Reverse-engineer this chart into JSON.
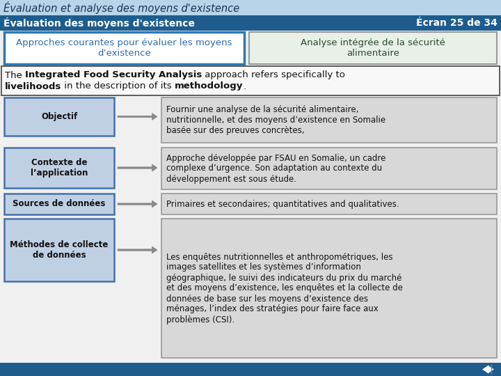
{
  "title1": "Évaluation et analyse des moyens d'existence",
  "title2": "Évaluation des moyens d'existence",
  "screen_label": "Écran 25 de 34",
  "tab1": "Approches courantes pour évaluer les moyens\nd’existence",
  "tab2": "Analyse intégrée de la sécurité\nalimentaire",
  "rows": [
    {
      "label": "Objectif",
      "text": "Fournir une analyse de la sécurité alimentaire,\nnutritionnelle, et des moyens d’existence en Somalie\nbasée sur des preuves concrètes,"
    },
    {
      "label": "Contexte de\nl’application",
      "text": "Approche développée par FSAU en Somalie, un cadre\ncomplexe d’urgence. Son adaptation au contexte du\ndéveloppement est sous étude."
    },
    {
      "label": "Sources de données",
      "text": "Primaires et secondaires; quantitatives and qualitatives."
    },
    {
      "label": "Méthodes de collecte\nde données",
      "text": "Les enquêtes nutritionnelles et anthropométriques, les\nimages satellites et les systèmes d’information\ngéographique, le suivi des indicateurs du prix du marché\net des moyens d’existence, les enquêtes et la collecte de\ndonnées de base sur les moyens d’existence des\nménages, l’index des stratégies pour faire face aux\nproblèmes (CSI)."
    }
  ],
  "color_header1_bg": "#b8d4e8",
  "color_header2_bg": "#1e5c8e",
  "color_header2_text": "#ffffff",
  "color_tab1_bg": "#ffffff",
  "color_tab1_border": "#2b7ab5",
  "color_tab2_bg": "#e8f0e8",
  "color_tab2_border": "#999999",
  "color_intro_bg": "#f8f8f8",
  "color_intro_border": "#444444",
  "color_label_bg": "#c0d0e4",
  "color_label_border": "#4472a8",
  "color_desc_bg": "#d8d8d8",
  "color_desc_border": "#999999",
  "color_arrow": "#888888",
  "color_footer_bg": "#1e5c8e",
  "bg_color": "#f0f0f0"
}
